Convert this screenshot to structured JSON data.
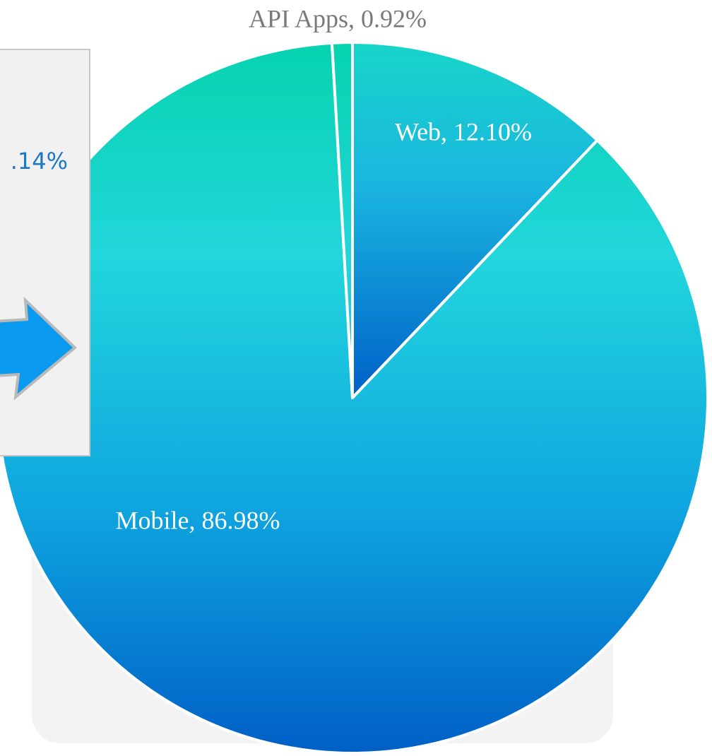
{
  "chart_data": {
    "type": "pie",
    "labels": [
      "Web, 12.10%",
      "Mobile, 86.98%",
      "API Apps, 0.92%"
    ],
    "values": [
      12.1,
      86.98,
      0.92
    ]
  },
  "panel": {
    "text": ".14%"
  }
}
